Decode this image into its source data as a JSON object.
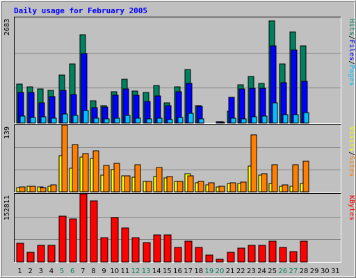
{
  "chart_data": {
    "type": "bar",
    "title": "Daily usage for February 2005",
    "categories": [
      "1",
      "2",
      "3",
      "4",
      "5",
      "6",
      "7",
      "8",
      "9",
      "10",
      "11",
      "12",
      "13",
      "14",
      "15",
      "16",
      "17",
      "18",
      "19",
      "20",
      "21",
      "22",
      "23",
      "24",
      "25",
      "26",
      "27",
      "28",
      "29",
      "30",
      "31"
    ],
    "weekend_days": [
      "5",
      "6",
      "12",
      "13",
      "19",
      "20",
      "26",
      "27"
    ],
    "grid": true,
    "legend_position": "right",
    "colors": {
      "background": "#c0c0c0",
      "title": "#0000ff",
      "weekday_label": "#000000",
      "weekend_label": "#00805c",
      "hits": "#00805c",
      "files": "#0000ff",
      "pages": "#00c0ff",
      "visits": "#ffff00",
      "sites": "#ff8000",
      "kbytes": "#ff0000"
    },
    "panels": [
      {
        "id": "hits-files-pages",
        "y_max_label": "2683",
        "ylim": [
          0,
          2683
        ],
        "legend": [
          {
            "label": "Pages",
            "color": "#00c0ff"
          },
          {
            "label": "/",
            "color": "#000000"
          },
          {
            "label": "Files",
            "color": "#0000ff"
          },
          {
            "label": "/",
            "color": "#000000"
          },
          {
            "label": "Hits",
            "color": "#00805c"
          }
        ],
        "series": [
          {
            "name": "Hits",
            "color": "#00805c",
            "values": [
              985,
              910,
              858,
              835,
              1220,
              1500,
              2240,
              560,
              440,
              790,
              1110,
              805,
              770,
              950,
              520,
              925,
              1360,
              450,
              0,
              40,
              300,
              975,
              1180,
              1000,
              2600,
              1500,
              2320,
              1955,
              0,
              0,
              0
            ]
          },
          {
            "name": "Files",
            "color": "#0000ff",
            "values": [
              780,
              775,
              520,
              665,
              825,
              730,
              1760,
              390,
              410,
              710,
              860,
              705,
              550,
              690,
              450,
              800,
              1010,
              420,
              0,
              30,
              650,
              860,
              875,
              880,
              1960,
              1030,
              1850,
              1060,
              0,
              0,
              0
            ]
          },
          {
            "name": "Pages",
            "color": "#00c0ff",
            "values": [
              180,
              140,
              155,
              120,
              230,
              200,
              320,
              120,
              100,
              120,
              190,
              120,
              100,
              130,
              90,
              150,
              240,
              110,
              0,
              10,
              120,
              110,
              165,
              180,
              510,
              210,
              210,
              270,
              0,
              0,
              0
            ]
          }
        ]
      },
      {
        "id": "visits-sites",
        "y_max_label": "139",
        "ylim": [
          0,
          139
        ],
        "legend": [
          {
            "label": "Sites",
            "color": "#ff8000"
          },
          {
            "label": "/",
            "color": "#000000"
          },
          {
            "label": "Visits",
            "color": "#ffff00"
          }
        ],
        "series": [
          {
            "name": "Visits",
            "color": "#ffff00",
            "values": [
              8,
              11,
              10,
              12,
              76,
              49,
              73,
              69,
              35,
              46,
              33,
              30,
              22,
              32,
              29,
              22,
              37,
              19,
              14,
              10,
              17,
              17,
              53,
              35,
              17,
              12,
              11,
              18,
              0,
              0,
              0
            ]
          },
          {
            "name": "Sites",
            "color": "#ff8000",
            "values": [
              10,
              12,
              9,
              15,
              139,
              99,
              79,
              86,
              55,
              60,
              33,
              56,
              22,
              50,
              32,
              22,
              34,
              21,
              19,
              11,
              19,
              20,
              119,
              37,
              56,
              14,
              56,
              64,
              0,
              0,
              0
            ]
          }
        ]
      },
      {
        "id": "kbytes",
        "y_max_label": "152811",
        "ylim": [
          0,
          152811
        ],
        "legend": [
          {
            "label": "KBytes",
            "color": "#ff0000"
          }
        ],
        "series": [
          {
            "name": "KBytes",
            "color": "#ff0000",
            "values": [
              42000,
              22000,
              37000,
              37000,
              103000,
              97000,
              152811,
              137000,
              55000,
              100000,
              76000,
              54000,
              44000,
              61000,
              61000,
              33000,
              46000,
              32000,
              15000,
              6000,
              22000,
              31000,
              38000,
              37000,
              46000,
              33000,
              24000,
              46000,
              0,
              0,
              0
            ]
          }
        ]
      }
    ]
  }
}
